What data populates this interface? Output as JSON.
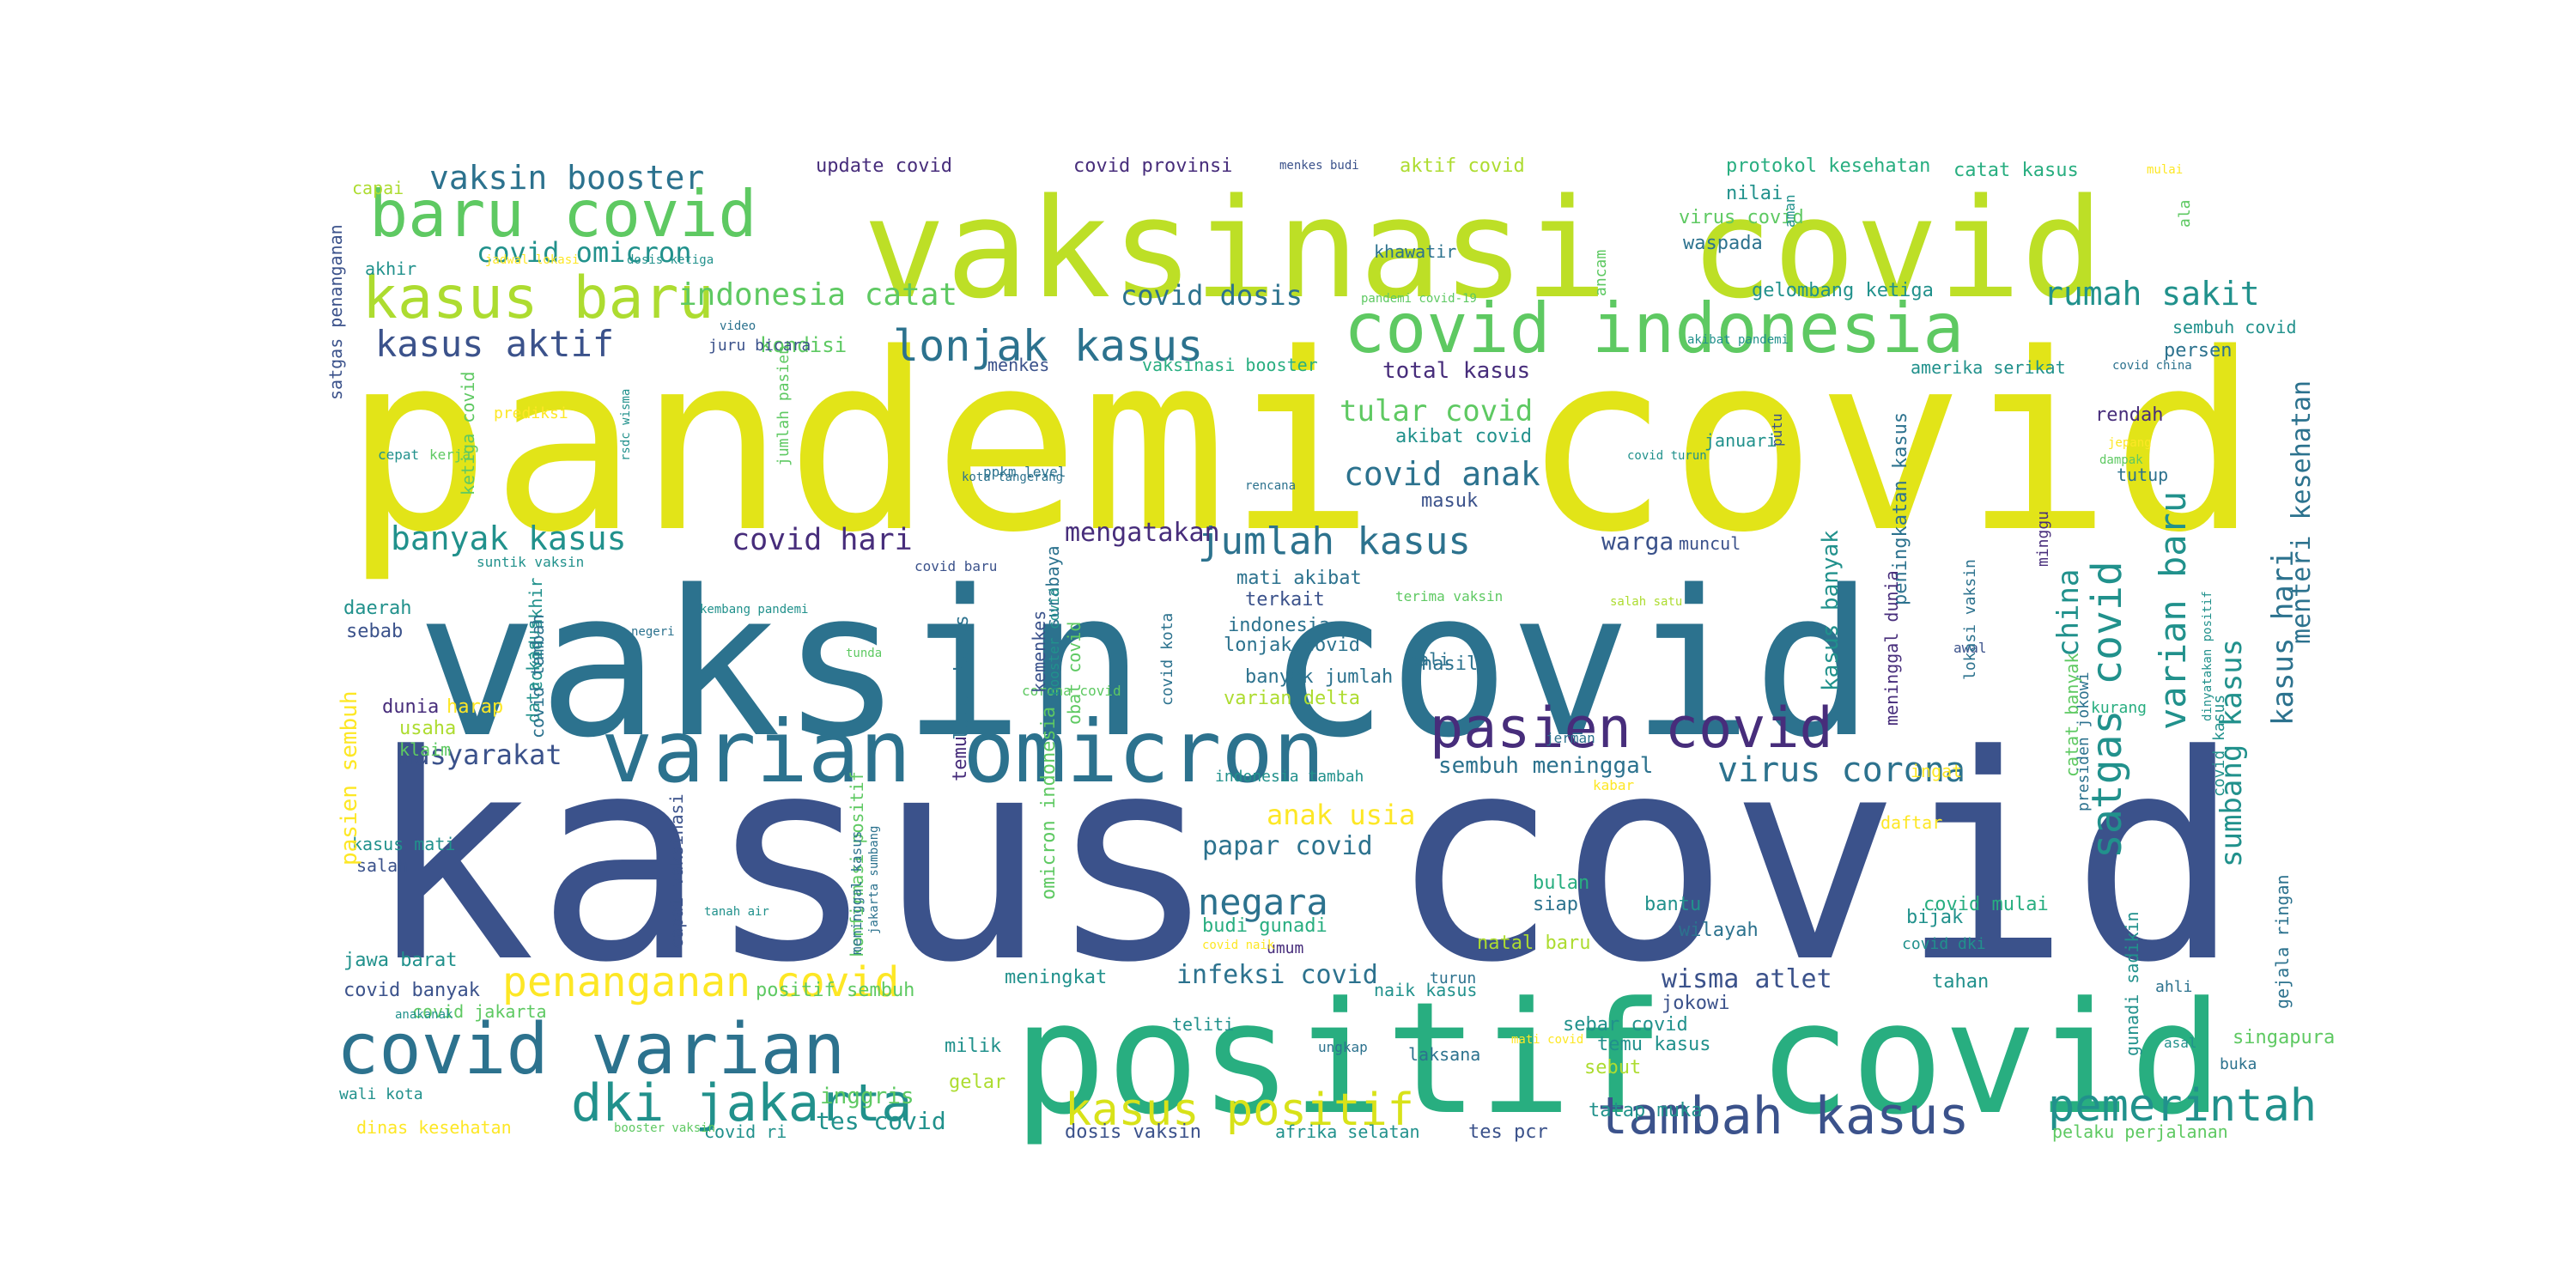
{
  "wordcloud": {
    "colors": {
      "background": "#ffffff",
      "palette": [
        "#440154",
        "#472d7b",
        "#3b528b",
        "#2c728e",
        "#21918c",
        "#28ae80",
        "#5ec962",
        "#addc30",
        "#fde725"
      ]
    },
    "words": [
      {
        "text": "kasus covid",
        "color": "#3b528b"
      },
      {
        "text": "pandemi covid",
        "color": "#e2e418"
      },
      {
        "text": "vaksin covid",
        "color": "#2c728e"
      },
      {
        "text": "vaksinasi covid",
        "color": "#bddf26"
      },
      {
        "text": "positif covid",
        "color": "#28ae80"
      },
      {
        "text": "varian omicron",
        "color": "#2c728e"
      },
      {
        "text": "covid varian",
        "color": "#2c728e"
      },
      {
        "text": "baru covid",
        "color": "#5ec962"
      },
      {
        "text": "covid indonesia",
        "color": "#5ec962"
      },
      {
        "text": "pasien covid",
        "color": "#472d7b"
      },
      {
        "text": "kasus baru",
        "color": "#addc30"
      },
      {
        "text": "tambah kasus",
        "color": "#3b528b"
      },
      {
        "text": "dki jakarta",
        "color": "#21918c"
      },
      {
        "text": "kasus positif",
        "color": "#d8e219"
      },
      {
        "text": "lonjak kasus",
        "color": "#2c728e"
      },
      {
        "text": "satgas covid",
        "color": "#21918c"
      },
      {
        "text": "pemerintah",
        "color": "#21918c"
      },
      {
        "text": "kasus aktif",
        "color": "#3b528b"
      },
      {
        "text": "jumlah kasus",
        "color": "#2c728e"
      },
      {
        "text": "penanganan covid",
        "color": "#fde725"
      },
      {
        "text": "varian baru",
        "color": "#21918c"
      },
      {
        "text": "virus corona",
        "color": "#2c728e"
      },
      {
        "text": "negara",
        "color": "#2c728e"
      },
      {
        "text": "vaksin booster",
        "color": "#2c728e"
      },
      {
        "text": "banyak kasus",
        "color": "#21918c"
      },
      {
        "text": "covid anak",
        "color": "#2c728e"
      },
      {
        "text": "rumah sakit",
        "color": "#21918c"
      },
      {
        "text": "indonesia catat",
        "color": "#5ec962"
      },
      {
        "text": "covid hari",
        "color": "#472d7b"
      },
      {
        "text": "masyarakat",
        "color": "#3b528b"
      },
      {
        "text": "sumbang kasus",
        "color": "#21918c"
      },
      {
        "text": "kasus hari",
        "color": "#2c728e"
      },
      {
        "text": "covid omicron",
        "color": "#21918c"
      },
      {
        "text": "wisma atlet",
        "color": "#3b528b"
      },
      {
        "text": "covid dosis",
        "color": "#2c728e"
      },
      {
        "text": "tular covid",
        "color": "#5ec962"
      },
      {
        "text": "mengatakan",
        "color": "#472d7b"
      },
      {
        "text": "china",
        "color": "#21918c"
      },
      {
        "text": "anak usia",
        "color": "#fde725"
      },
      {
        "text": "papar covid",
        "color": "#2c728e"
      },
      {
        "text": "infeksi covid",
        "color": "#2c728e"
      },
      {
        "text": "tes covid",
        "color": "#21918c"
      },
      {
        "text": "warga",
        "color": "#3b528b"
      },
      {
        "text": "inggris",
        "color": "#5ec962"
      },
      {
        "text": "menteri kesehatan",
        "color": "#2c728e"
      },
      {
        "text": "kasus banyak",
        "color": "#21918c"
      },
      {
        "text": "sembuh meninggal",
        "color": "#2c728e"
      },
      {
        "text": "total kasus",
        "color": "#472d7b"
      },
      {
        "text": "kondisi",
        "color": "#5ec962"
      },
      {
        "text": "update covid",
        "color": "#472d7b"
      },
      {
        "text": "covid provinsi",
        "color": "#472d7b"
      },
      {
        "text": "aktif covid",
        "color": "#addc30"
      },
      {
        "text": "protokol kesehatan",
        "color": "#28ae80"
      },
      {
        "text": "catat kasus",
        "color": "#28ae80"
      },
      {
        "text": "gelombang ketiga",
        "color": "#21918c"
      },
      {
        "text": "waspada",
        "color": "#2c728e"
      },
      {
        "text": "nilai",
        "color": "#21918c"
      },
      {
        "text": "virus covid",
        "color": "#5ec962"
      },
      {
        "text": "khawatir",
        "color": "#2c728e"
      },
      {
        "text": "persen",
        "color": "#2c728e"
      },
      {
        "text": "sembuh covid",
        "color": "#21918c"
      },
      {
        "text": "amerika serikat",
        "color": "#21918c"
      },
      {
        "text": "rendah",
        "color": "#472d7b"
      },
      {
        "text": "menkes",
        "color": "#3b528b"
      },
      {
        "text": "vaksinasi booster",
        "color": "#28ae80"
      },
      {
        "text": "akibat covid",
        "color": "#21918c"
      },
      {
        "text": "januari",
        "color": "#21918c"
      },
      {
        "text": "masuk",
        "color": "#3b528b"
      },
      {
        "text": "muncul",
        "color": "#3b528b"
      },
      {
        "text": "tutup",
        "color": "#2c728e"
      },
      {
        "text": "mati akibat",
        "color": "#2c728e"
      },
      {
        "text": "terkait",
        "color": "#3b528b"
      },
      {
        "text": "indonesia",
        "color": "#2c728e"
      },
      {
        "text": "lonjak covid",
        "color": "#2c728e"
      },
      {
        "text": "hasil",
        "color": "#2c728e"
      },
      {
        "text": "banyak jumlah",
        "color": "#2c728e"
      },
      {
        "text": "varian delta",
        "color": "#addc30"
      },
      {
        "text": "dunia",
        "color": "#472d7b"
      },
      {
        "text": "harap",
        "color": "#fde725"
      },
      {
        "text": "usaha",
        "color": "#addc30"
      },
      {
        "text": "klaim",
        "color": "#5ec962"
      },
      {
        "text": "daerah",
        "color": "#21918c"
      },
      {
        "text": "sebab",
        "color": "#3b528b"
      },
      {
        "text": "kasus mati",
        "color": "#21918c"
      },
      {
        "text": "salah",
        "color": "#3b528b"
      },
      {
        "text": "jawa barat",
        "color": "#21918c"
      },
      {
        "text": "covid banyak",
        "color": "#3b528b"
      },
      {
        "text": "covid jakarta",
        "color": "#5ec962"
      },
      {
        "text": "positif sembuh",
        "color": "#5ec962"
      },
      {
        "text": "wali kota",
        "color": "#21918c"
      },
      {
        "text": "dinas kesehatan",
        "color": "#fde725"
      },
      {
        "text": "covid ri",
        "color": "#21918c"
      },
      {
        "text": "dosis vaksin",
        "color": "#3b528b"
      },
      {
        "text": "afrika selatan",
        "color": "#21918c"
      },
      {
        "text": "tes pcr",
        "color": "#3b528b"
      },
      {
        "text": "pelaku perjalanan",
        "color": "#5ec962"
      },
      {
        "text": "indonesia tambah",
        "color": "#21918c"
      },
      {
        "text": "bulan",
        "color": "#28ae80"
      },
      {
        "text": "siap",
        "color": "#2c728e"
      },
      {
        "text": "budi gunadi",
        "color": "#28ae80"
      },
      {
        "text": "natal baru",
        "color": "#addc30"
      },
      {
        "text": "naik kasus",
        "color": "#21918c"
      },
      {
        "text": "umum",
        "color": "#472d7b"
      },
      {
        "text": "meningkat",
        "color": "#21918c"
      },
      {
        "text": "jokowi",
        "color": "#3b528b"
      },
      {
        "text": "turun",
        "color": "#2c728e"
      },
      {
        "text": "sebar covid",
        "color": "#21918c"
      },
      {
        "text": "temu kasus",
        "color": "#21918c"
      },
      {
        "text": "sebut",
        "color": "#addc30"
      },
      {
        "text": "tatap muka",
        "color": "#21918c"
      },
      {
        "text": "tahan",
        "color": "#21918c"
      },
      {
        "text": "daftar",
        "color": "#fde725"
      },
      {
        "text": "covid mulai",
        "color": "#28ae80"
      },
      {
        "text": "covid dki",
        "color": "#21918c"
      },
      {
        "text": "bijak",
        "color": "#21918c"
      },
      {
        "text": "bantu",
        "color": "#21918c"
      },
      {
        "text": "wilayah",
        "color": "#2c728e"
      },
      {
        "text": "ingat",
        "color": "#fde725"
      },
      {
        "text": "milik",
        "color": "#21918c"
      },
      {
        "text": "gelar",
        "color": "#addc30"
      },
      {
        "text": "singapura",
        "color": "#5ec962"
      },
      {
        "text": "buka",
        "color": "#2c728e"
      },
      {
        "text": "ahli",
        "color": "#2c728e"
      },
      {
        "text": "asal",
        "color": "#21918c"
      },
      {
        "text": "laksana",
        "color": "#2c728e"
      },
      {
        "text": "ungkap",
        "color": "#2c728e"
      },
      {
        "text": "teliti",
        "color": "#21918c"
      },
      {
        "text": "kurang",
        "color": "#28ae80"
      },
      {
        "text": "kabar",
        "color": "#fde725"
      },
      {
        "text": "jerman",
        "color": "#2c728e"
      },
      {
        "text": "bali",
        "color": "#2c728e"
      },
      {
        "text": "awal",
        "color": "#3b528b"
      },
      {
        "text": "cepat",
        "color": "#21918c"
      },
      {
        "text": "kerja",
        "color": "#5ec962"
      },
      {
        "text": "capai",
        "color": "#addc30"
      },
      {
        "text": "akhir",
        "color": "#21918c"
      },
      {
        "text": "video",
        "color": "#2c728e"
      },
      {
        "text": "prediksi",
        "color": "#fde725"
      },
      {
        "text": "juru bicara",
        "color": "#3b528b"
      },
      {
        "text": "putu",
        "color": "#3b528b"
      },
      {
        "text": "jepang",
        "color": "#fde725"
      },
      {
        "text": "dampak",
        "color": "#5ec962"
      },
      {
        "text": "menkes budi",
        "color": "#3b528b"
      },
      {
        "text": "mulai",
        "color": "#fde725"
      },
      {
        "text": "aman",
        "color": "#21918c"
      },
      {
        "text": "ala",
        "color": "#5ec962"
      },
      {
        "text": "minggu",
        "color": "#472d7b"
      },
      {
        "text": "suntik vaksin",
        "color": "#21918c"
      },
      {
        "text": "tunda",
        "color": "#5ec962"
      },
      {
        "text": "ppkm level",
        "color": "#2c728e"
      },
      {
        "text": "covid baru",
        "color": "#3b528b"
      },
      {
        "text": "akibat pandemi",
        "color": "#21918c"
      },
      {
        "text": "covid china",
        "color": "#2c728e"
      },
      {
        "text": "kembang pandemi",
        "color": "#21918c"
      },
      {
        "text": "terima vaksin",
        "color": "#5ec962"
      },
      {
        "text": "salah satu",
        "color": "#addc30"
      },
      {
        "text": "jadwal lokasi",
        "color": "#fde725"
      },
      {
        "text": "dosis ketiga",
        "color": "#21918c"
      },
      {
        "text": "covid turun",
        "color": "#21918c"
      },
      {
        "text": "corona covid",
        "color": "#5ec962"
      },
      {
        "text": "covid naik",
        "color": "#fde725"
      },
      {
        "text": "tanah air",
        "color": "#21918c"
      },
      {
        "text": "booster vaksin",
        "color": "#5ec962"
      },
      {
        "text": "anakanak",
        "color": "#21918c"
      },
      {
        "text": "negeri",
        "color": "#2c728e"
      },
      {
        "text": "mati covid",
        "color": "#fde725"
      },
      {
        "text": "pandemi covid-19",
        "color": "#5ec962"
      },
      {
        "text": "kota tangerang",
        "color": "#2c728e"
      },
      {
        "text": "rencana",
        "color": "#2c728e"
      },
      {
        "text": "satgas penanganan",
        "color": "#3b528b"
      },
      {
        "text": "ketiga covid",
        "color": "#5ec962"
      },
      {
        "text": "rsdc wisma",
        "color": "#21918c"
      },
      {
        "text": "jumlah pasien",
        "color": "#5ec962"
      },
      {
        "text": "covid akhir",
        "color": "#21918c"
      },
      {
        "text": "data kasus",
        "color": "#21918c"
      },
      {
        "text": "covid tambah",
        "color": "#2c728e"
      },
      {
        "text": "pasien sembuh",
        "color": "#fde725"
      },
      {
        "text": "capai vaksinasi",
        "color": "#3b528b"
      },
      {
        "text": "konfirmasi positif",
        "color": "#5ec962"
      },
      {
        "text": "meninggal kasus",
        "color": "#2c728e"
      },
      {
        "text": "jakarta sumbang",
        "color": "#2c728e"
      },
      {
        "text": "lapor kasus",
        "color": "#2c728e"
      },
      {
        "text": "temu",
        "color": "#472d7b"
      },
      {
        "text": "kemenkes",
        "color": "#3b528b"
      },
      {
        "text": "covid surabaya",
        "color": "#2c728e"
      },
      {
        "text": "booster covid",
        "color": "#21918c"
      },
      {
        "text": "obat covid",
        "color": "#5ec962"
      },
      {
        "text": "omicron indonesia",
        "color": "#5ec962"
      },
      {
        "text": "covid kota",
        "color": "#2c728e"
      },
      {
        "text": "ancam",
        "color": "#5ec962"
      },
      {
        "text": "peningkatan kasus",
        "color": "#2c728e"
      },
      {
        "text": "meninggal dunia",
        "color": "#472d7b"
      },
      {
        "text": "lokasi vaksin",
        "color": "#2c728e"
      },
      {
        "text": "catat banyak",
        "color": "#5ec962"
      },
      {
        "text": "presiden jokowi",
        "color": "#2c728e"
      },
      {
        "text": "covid kasus",
        "color": "#21918c"
      },
      {
        "text": "dinyatakan positif",
        "color": "#21918c"
      },
      {
        "text": "gunadi sadikin",
        "color": "#21918c"
      },
      {
        "text": "gejala ringan",
        "color": "#2c728e"
      }
    ]
  }
}
